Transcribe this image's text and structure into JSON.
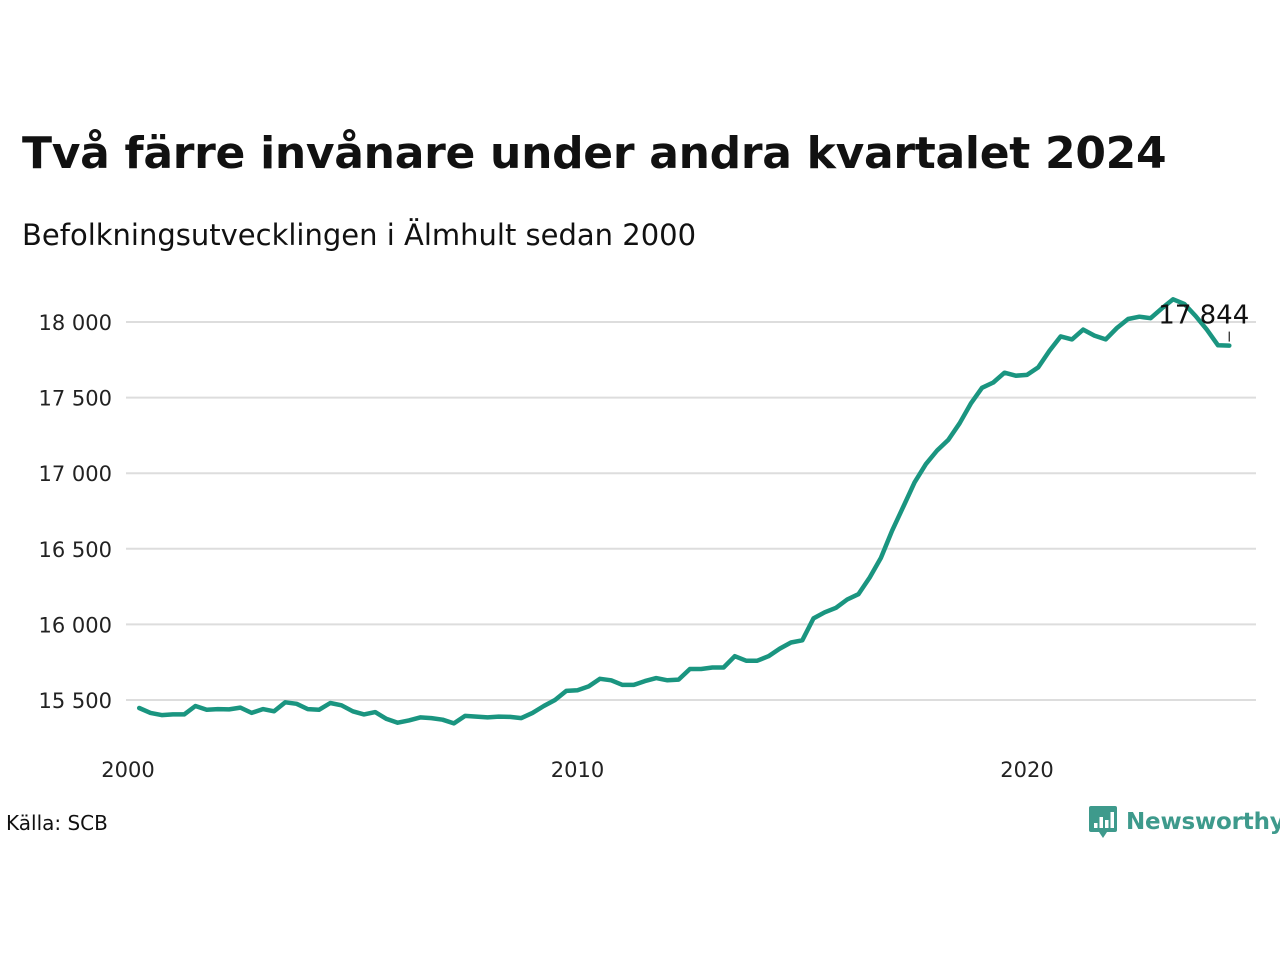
{
  "title": "Två färre invånare under andra kvartalet 2024",
  "subtitle": "Befolkningsutvecklingen i Älmhult sedan 2000",
  "source": "Källa: SCB",
  "logo_text": "Newsworthy",
  "colors": {
    "line": "#1a9580",
    "grid": "#dddddd",
    "text": "#111111",
    "logo": "#3e9a8c"
  },
  "chart_data": {
    "type": "line",
    "xlim": [
      2000,
      2025
    ],
    "ylim": [
      15200,
      18250
    ],
    "y_ticks": [
      15500,
      16000,
      16500,
      17000,
      17500,
      18000
    ],
    "y_tick_labels": [
      "15 500",
      "16 000",
      "16 500",
      "17 000",
      "17 500",
      "18 000"
    ],
    "x_ticks": [
      2000,
      2010,
      2020
    ],
    "x_tick_labels": [
      "2000",
      "2010",
      "2020"
    ],
    "end_label": "17 844",
    "series": [
      {
        "x": [
          2000.25,
          2000.5,
          2000.75,
          2001.0,
          2001.25,
          2001.5,
          2001.75,
          2002.0,
          2002.25,
          2002.5,
          2002.75,
          2003.0,
          2003.25,
          2003.5,
          2003.75,
          2004.0,
          2004.25,
          2004.5,
          2004.75,
          2005.0,
          2005.25,
          2005.5,
          2005.75,
          2006.0,
          2006.25,
          2006.5,
          2006.75,
          2007.0,
          2007.25,
          2007.5,
          2007.75,
          2008.0,
          2008.25,
          2008.5,
          2008.75,
          2009.0,
          2009.25,
          2009.5,
          2009.75,
          2010.0,
          2010.25,
          2010.5,
          2010.75,
          2011.0,
          2011.25,
          2011.5,
          2011.75,
          2012.0,
          2012.25,
          2012.5,
          2012.75,
          2013.0,
          2013.25,
          2013.5,
          2013.75,
          2014.0,
          2014.25,
          2014.5,
          2014.75,
          2015.0,
          2015.25,
          2015.5,
          2015.75,
          2016.0,
          2016.25,
          2016.5,
          2016.75,
          2017.0,
          2017.25,
          2017.5,
          2017.75,
          2018.0,
          2018.25,
          2018.5,
          2018.75,
          2019.0,
          2019.25,
          2019.5,
          2019.75,
          2020.0,
          2020.25,
          2020.5,
          2020.75,
          2021.0,
          2021.25,
          2021.5,
          2021.75,
          2022.0,
          2022.25,
          2022.5,
          2022.75,
          2023.0,
          2023.25,
          2023.5,
          2023.75,
          2024.0,
          2024.25,
          2024.5
        ],
        "values": [
          15447,
          15415,
          15400,
          15405,
          15405,
          15460,
          15435,
          15440,
          15438,
          15450,
          15415,
          15440,
          15425,
          15485,
          15475,
          15440,
          15435,
          15480,
          15465,
          15425,
          15405,
          15420,
          15375,
          15350,
          15365,
          15385,
          15380,
          15370,
          15345,
          15395,
          15390,
          15385,
          15390,
          15388,
          15380,
          15415,
          15460,
          15500,
          15560,
          15565,
          15590,
          15640,
          15630,
          15600,
          15600,
          15625,
          15645,
          15630,
          15635,
          15705,
          15705,
          15715,
          15715,
          15790,
          15760,
          15760,
          15790,
          15840,
          15880,
          15895,
          16040,
          16080,
          16110,
          16165,
          16200,
          16310,
          16440,
          16620,
          16780,
          16940,
          17060,
          17150,
          17220,
          17330,
          17460,
          17565,
          17600,
          17665,
          17645,
          17650,
          17700,
          17810,
          17905,
          17885,
          17950,
          17910,
          17885,
          17960,
          18020,
          18035,
          18025,
          18090,
          18150,
          18120,
          18040,
          17950,
          17846,
          17844
        ]
      }
    ]
  }
}
